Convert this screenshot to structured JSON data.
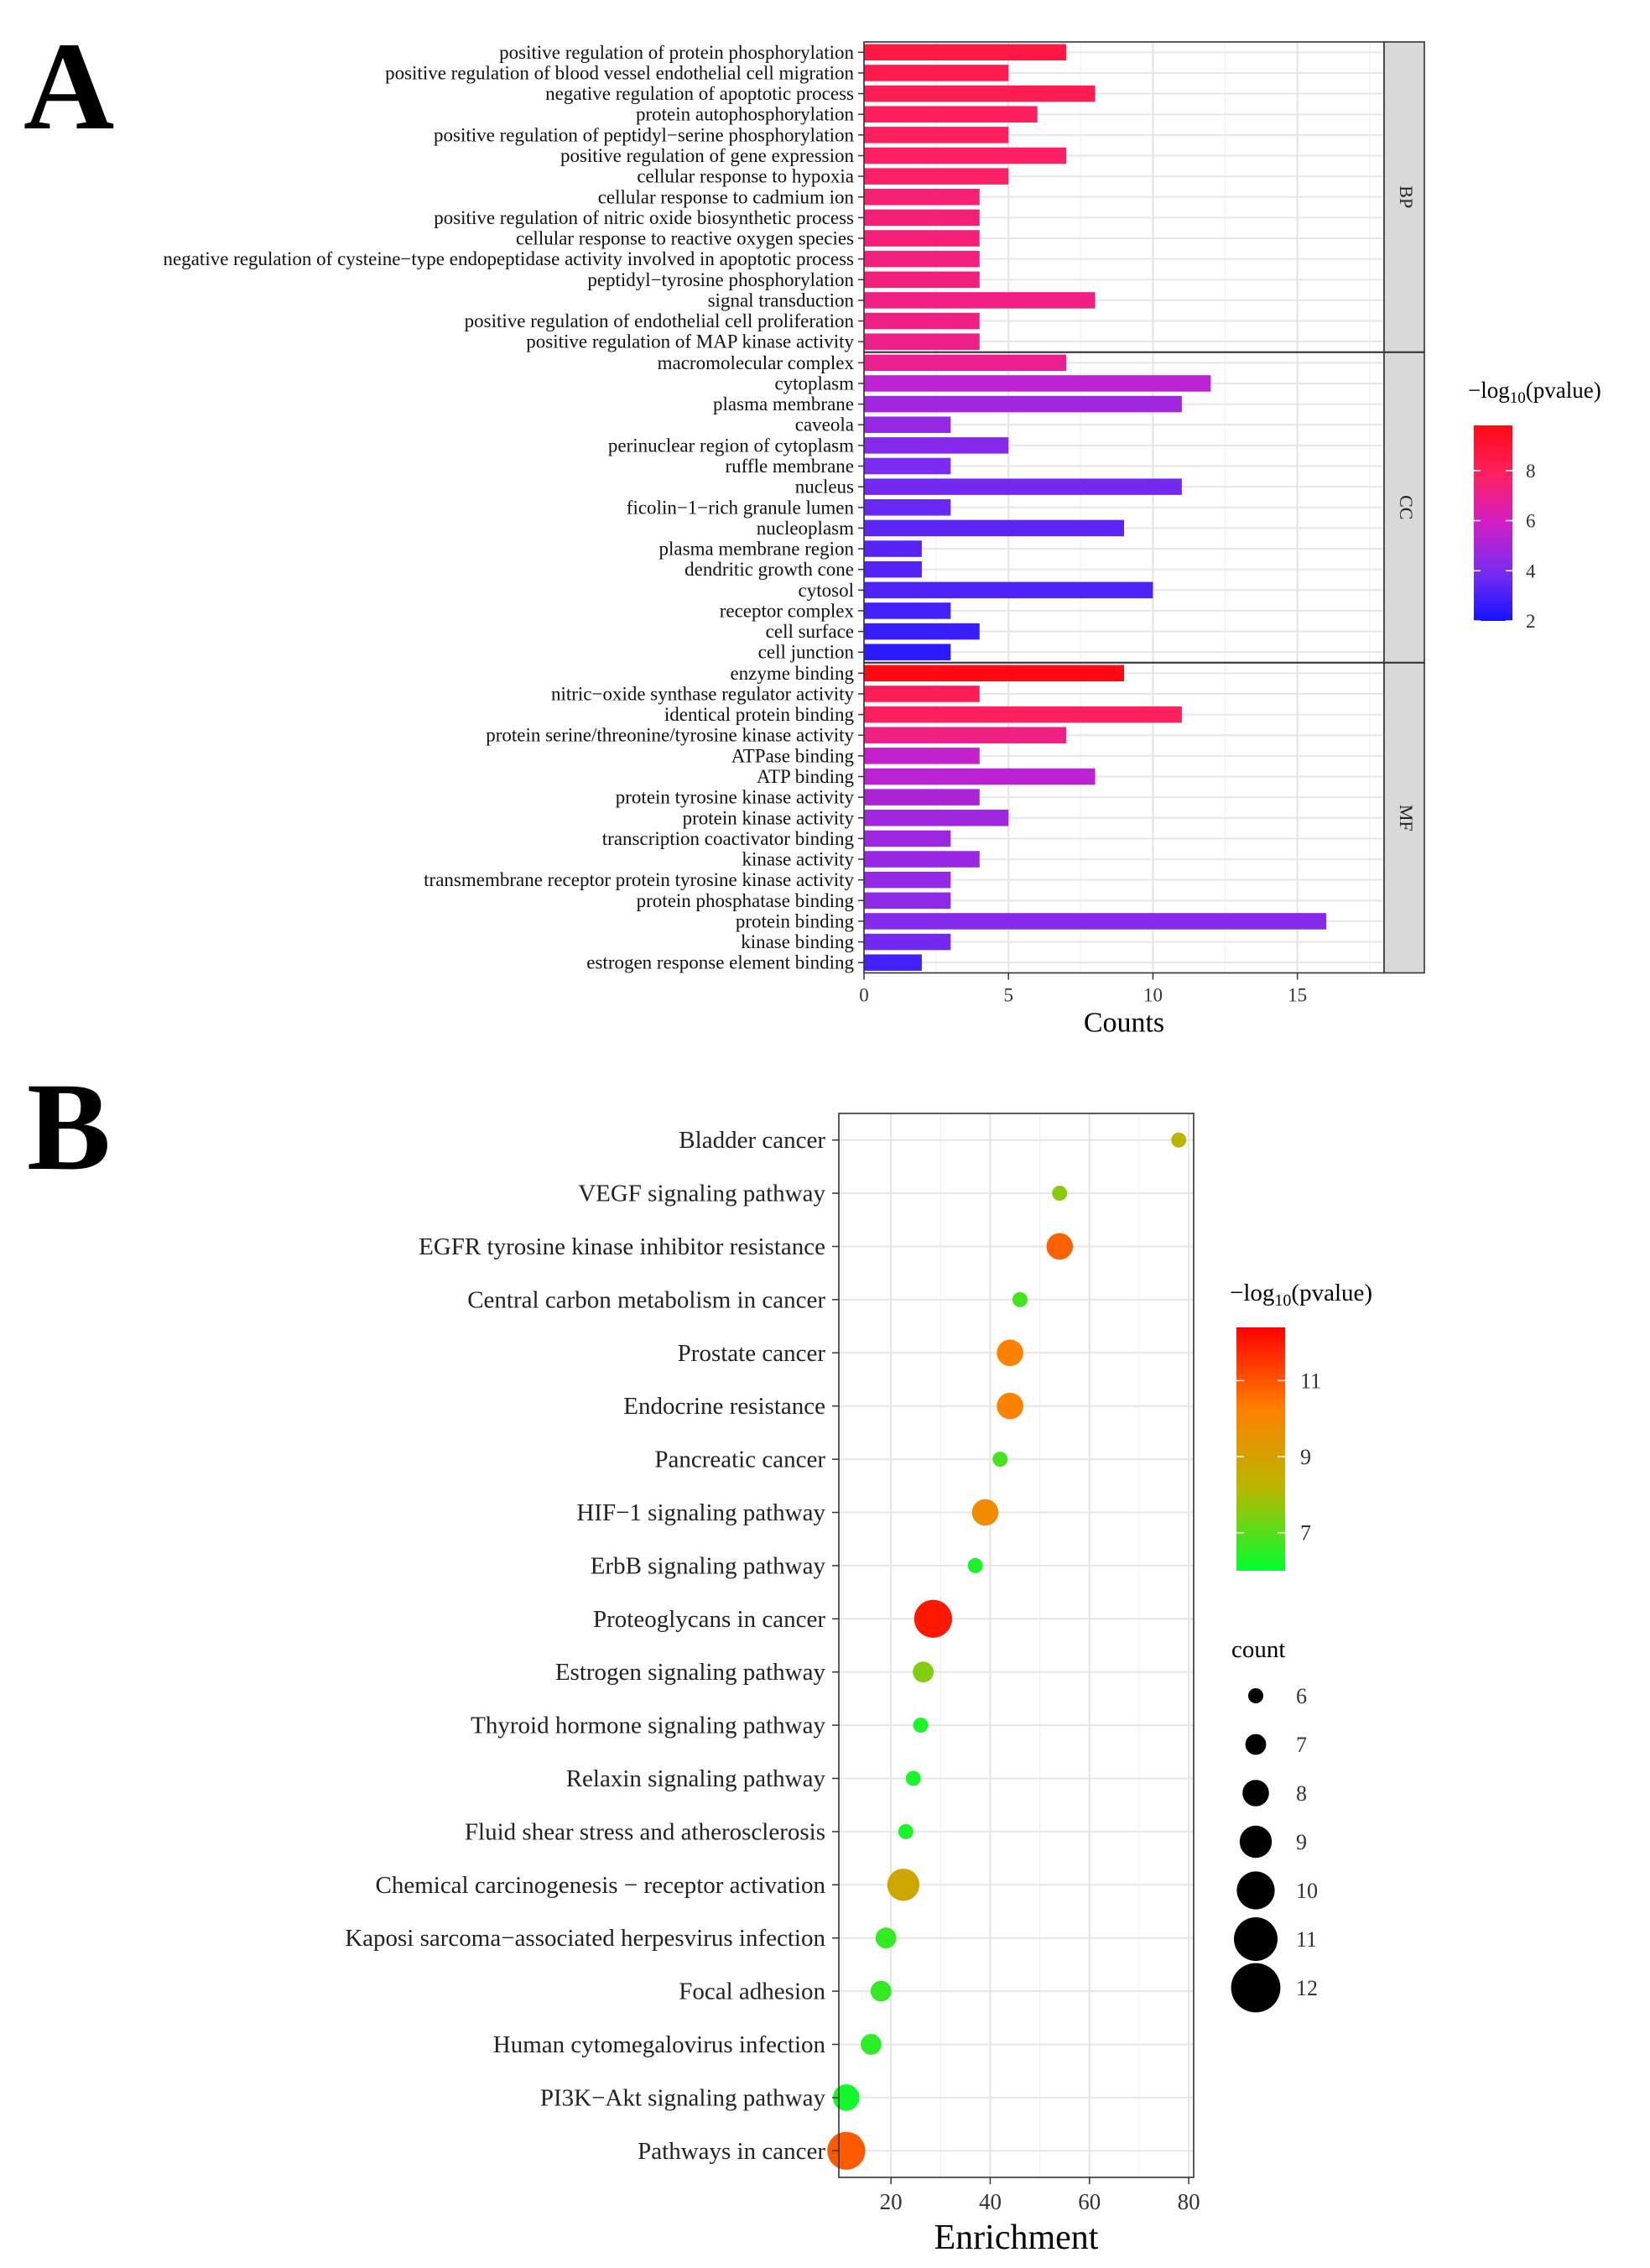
{
  "panel_a_label": "A",
  "panel_b_label": "B",
  "chart_data": [
    {
      "type": "bar",
      "orientation": "horizontal",
      "xlabel": "Counts",
      "xlim": [
        0,
        18
      ],
      "xticks": [
        0,
        5,
        10,
        15
      ],
      "color_legend": {
        "title_prefix": "−log",
        "title_sub": "10",
        "title_suffix": "(pvalue)",
        "range": [
          2,
          9.8
        ],
        "ticks": [
          2,
          4,
          6,
          8
        ],
        "colors": [
          "#1414ff",
          "#7a2cf0",
          "#d11ec8",
          "#ff2060",
          "#ff0a14"
        ]
      },
      "facets": [
        {
          "name": "BP",
          "categories": [
            "positive regulation of protein phosphorylation",
            "positive regulation of blood vessel endothelial cell migration",
            "negative regulation of apoptotic process",
            "protein autophosphorylation",
            "positive regulation of peptidyl−serine phosphorylation",
            "positive regulation of gene expression",
            "cellular response to hypoxia",
            "cellular response to cadmium ion",
            "positive regulation of nitric oxide biosynthetic process",
            "cellular response to reactive oxygen species",
            "negative regulation of cysteine−type endopeptidase activity involved in apoptotic process",
            "peptidyl−tyrosine phosphorylation",
            "signal transduction",
            "positive regulation of endothelial cell proliferation",
            "positive regulation of MAP kinase activity"
          ],
          "values": [
            7,
            5,
            8,
            6,
            5,
            7,
            5,
            4,
            4,
            4,
            4,
            4,
            8,
            4,
            4
          ],
          "neglog10_pvalue": [
            8.6,
            8.3,
            8.2,
            8.0,
            7.9,
            7.8,
            7.7,
            7.5,
            7.4,
            7.4,
            7.3,
            7.3,
            7.2,
            7.2,
            7.1
          ]
        },
        {
          "name": "CC",
          "categories": [
            "macromolecular complex",
            "cytoplasm",
            "plasma membrane",
            "caveola",
            "perinuclear region of cytoplasm",
            "ruffle membrane",
            "nucleus",
            "ficolin−1−rich granule lumen",
            "nucleoplasm",
            "plasma membrane region",
            "dendritic growth cone",
            "cytosol",
            "receptor complex",
            "cell surface",
            "cell junction"
          ],
          "values": [
            7,
            12,
            11,
            3,
            5,
            3,
            11,
            3,
            9,
            2,
            2,
            10,
            3,
            4,
            3
          ],
          "neglog10_pvalue": [
            7.0,
            5.4,
            4.8,
            4.5,
            4.2,
            4.0,
            3.8,
            3.6,
            3.4,
            3.3,
            3.2,
            3.1,
            2.9,
            2.7,
            2.4
          ]
        },
        {
          "name": "MF",
          "categories": [
            "enzyme binding",
            "nitric−oxide synthase regulator activity",
            "identical protein binding",
            "protein serine/threonine/tyrosine kinase activity",
            "ATPase binding",
            "ATP binding",
            "protein tyrosine kinase activity",
            "protein kinase activity",
            "transcription coactivator binding",
            "kinase activity",
            "transmembrane receptor protein tyrosine kinase activity",
            "protein phosphatase binding",
            "protein binding",
            "kinase binding",
            "estrogen response element binding"
          ],
          "values": [
            9,
            4,
            11,
            7,
            4,
            8,
            4,
            5,
            3,
            4,
            3,
            3,
            16,
            3,
            2
          ],
          "neglog10_pvalue": [
            9.8,
            8.1,
            7.9,
            7.2,
            5.6,
            5.4,
            5.1,
            4.8,
            4.7,
            4.6,
            4.5,
            4.4,
            4.2,
            3.8,
            2.9
          ]
        }
      ]
    },
    {
      "type": "scatter",
      "xlabel": "Enrichment",
      "xlim": [
        9.5,
        81
      ],
      "xticks": [
        20,
        40,
        60,
        80
      ],
      "categories": [
        "Bladder cancer",
        "VEGF signaling pathway",
        "EGFR tyrosine kinase inhibitor resistance",
        "Central carbon metabolism in cancer",
        "Prostate cancer",
        "Endocrine resistance",
        "Pancreatic cancer",
        "HIF−1 signaling pathway",
        "ErbB signaling pathway",
        "Proteoglycans in cancer",
        "Estrogen signaling pathway",
        "Thyroid hormone signaling pathway",
        "Relaxin signaling pathway",
        "Fluid shear stress and atherosclerosis",
        "Chemical carcinogenesis − receptor activation",
        "Kaposi sarcoma−associated herpesvirus infection",
        "Focal adhesion",
        "Human cytomegalovirus infection",
        "PI3K−Akt signaling pathway",
        "Pathways in cancer"
      ],
      "enrichment": [
        78,
        54,
        54,
        46,
        44,
        44,
        42,
        39,
        37,
        28.5,
        26.5,
        26,
        24.5,
        23,
        22.5,
        19,
        18,
        16,
        11,
        11
      ],
      "count": [
        6,
        6,
        8,
        6,
        8,
        8,
        6,
        8,
        6,
        10,
        7,
        6,
        6,
        6,
        9,
        7,
        7,
        7,
        8,
        10
      ],
      "neglog10_pvalue": [
        8.2,
        7.6,
        10.8,
        6.8,
        10.2,
        10.2,
        6.8,
        9.8,
        6.3,
        12.0,
        7.5,
        6.3,
        6.3,
        6.3,
        8.8,
        6.6,
        6.6,
        6.5,
        6.2,
        10.9
      ],
      "color_legend": {
        "title_prefix": "−log",
        "title_sub": "10",
        "title_suffix": "(pvalue)",
        "range": [
          6.0,
          12.4
        ],
        "ticks": [
          7,
          9,
          11
        ],
        "colors": [
          "#00ff30",
          "#b8b800",
          "#ff8000",
          "#ff0000"
        ]
      },
      "size_legend": {
        "title": "count",
        "values": [
          6,
          7,
          8,
          9,
          10,
          11,
          12
        ]
      }
    }
  ]
}
